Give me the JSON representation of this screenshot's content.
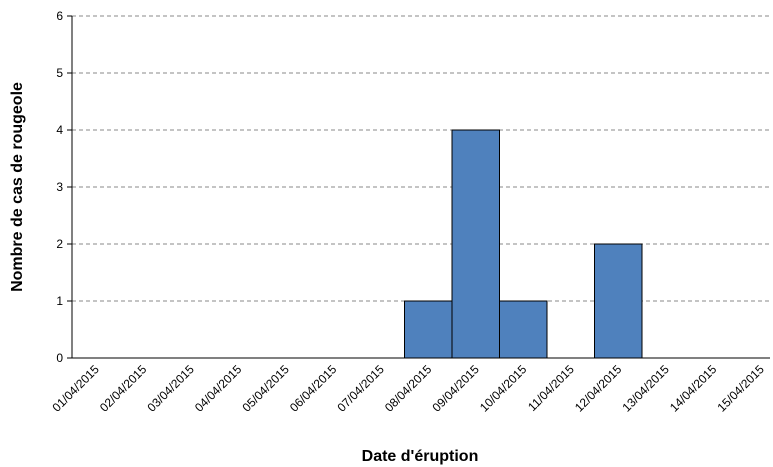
{
  "chart_data": {
    "type": "bar",
    "x_label": "Date d'éruption",
    "y_label": "Nombre de cas de rougeole",
    "categories": [
      "01/04/2015",
      "02/04/2015",
      "03/04/2015",
      "04/04/2015",
      "05/04/2015",
      "06/04/2015",
      "07/04/2015",
      "08/04/2015",
      "09/04/2015",
      "10/04/2015",
      "11/04/2015",
      "12/04/2015",
      "13/04/2015",
      "14/04/2015",
      "15/04/2015"
    ],
    "values": [
      0,
      0,
      0,
      0,
      0,
      0,
      0,
      1,
      4,
      1,
      0,
      2,
      0,
      0,
      0
    ],
    "color": "#4f81bd",
    "ylim": [
      0,
      6
    ],
    "yticks": [
      0,
      1,
      2,
      3,
      4,
      5,
      6
    ],
    "grid": true
  }
}
